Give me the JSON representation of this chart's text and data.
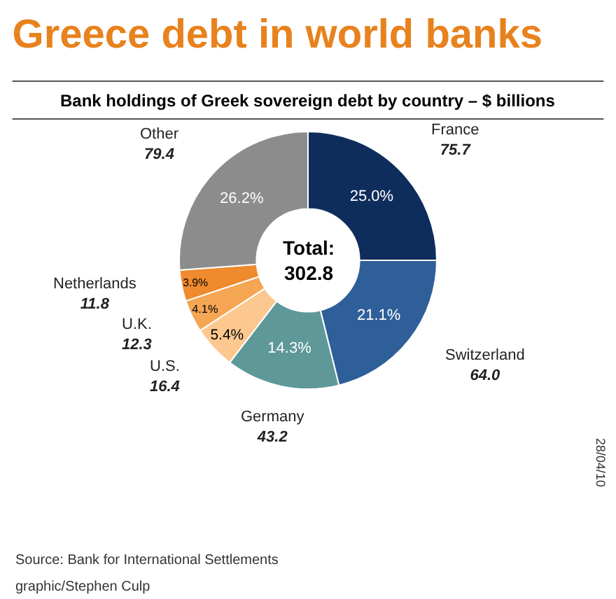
{
  "chart_data": {
    "type": "donut",
    "title": "Greece debt in world banks",
    "subtitle": "Bank holdings of Greek sovereign debt by country – $ billions",
    "categories": [
      "France",
      "Switzerland",
      "Germany",
      "U.S.",
      "U.K.",
      "Netherlands",
      "Other"
    ],
    "values": [
      75.7,
      64.0,
      43.2,
      16.4,
      12.3,
      11.8,
      79.4
    ],
    "colors": [
      "#0e2d5c",
      "#2f5f99",
      "#5e9898",
      "#fcc890",
      "#f5a653",
      "#ef8a2e",
      "#8c8c8c"
    ],
    "value_labels": [
      "75.7",
      "64.0",
      "43.2",
      "16.4",
      "12.3",
      "11.8",
      "79.4"
    ],
    "legend": false,
    "annotations": [
      "25.0%",
      "21.1%",
      "14.3%",
      "5.4%",
      "4.1%",
      "3.9%",
      "26.2%",
      "Total:\n302.8",
      "Source: Bank for International Settlements",
      "graphic/Stephen Culp",
      "28/04/10"
    ]
  }
}
